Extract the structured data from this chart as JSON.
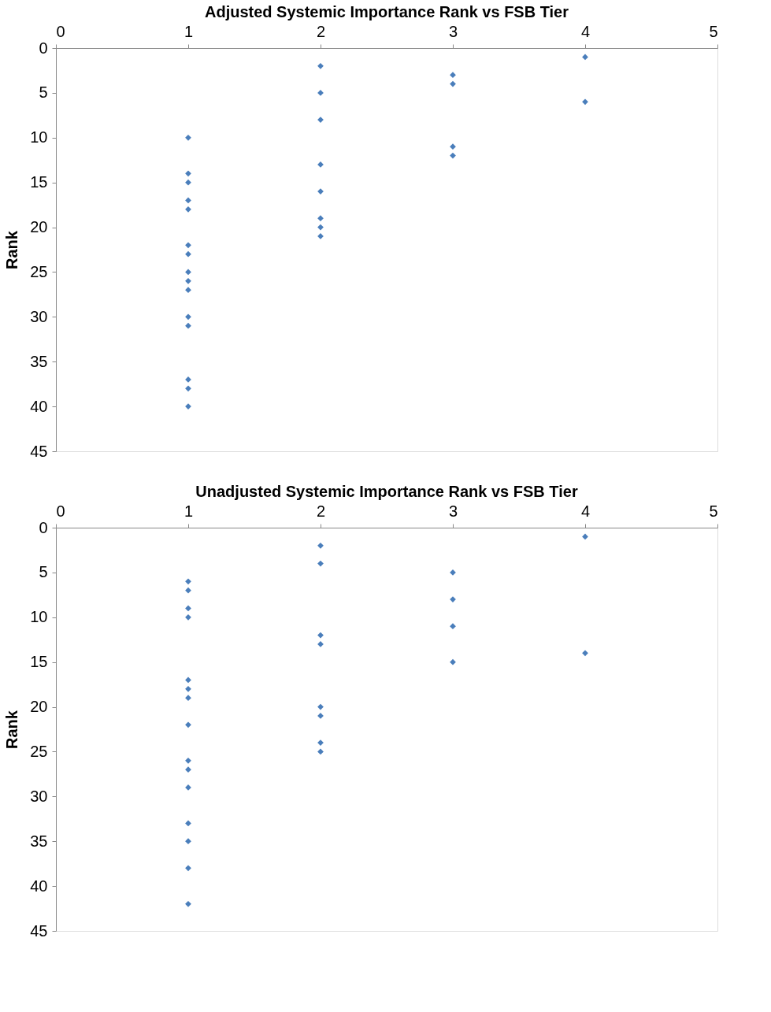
{
  "chart_data": [
    {
      "type": "scatter",
      "title": "Adjusted Systemic Importance Rank vs FSB Tier",
      "ylabel": "Rank",
      "series": [
        {
          "color": "#4a7ebb",
          "marker": "diamond",
          "x": [
            1,
            1,
            1,
            1,
            1,
            1,
            1,
            1,
            1,
            1,
            1,
            1,
            1,
            1,
            1,
            2,
            2,
            2,
            2,
            2,
            2,
            2,
            2,
            3,
            3,
            3,
            3,
            4,
            4
          ],
          "values": [
            10,
            14,
            15,
            17,
            18,
            22,
            23,
            25,
            26,
            27,
            30,
            31,
            37,
            38,
            40,
            2,
            5,
            8,
            13,
            16,
            19,
            20,
            21,
            3,
            4,
            11,
            12,
            1,
            6
          ]
        }
      ],
      "xlim": [
        0,
        5
      ],
      "xticks": [
        0,
        1,
        2,
        3,
        4,
        5
      ],
      "ylim": [
        45,
        0
      ],
      "yticks": [
        0,
        5,
        10,
        15,
        20,
        25,
        30,
        35,
        40,
        45
      ],
      "grid": false
    },
    {
      "type": "scatter",
      "title": "Unadjusted Systemic Importance Rank vs FSB Tier",
      "ylabel": "Rank",
      "series": [
        {
          "color": "#4a7ebb",
          "marker": "diamond",
          "x": [
            1,
            1,
            1,
            1,
            1,
            1,
            1,
            1,
            1,
            1,
            1,
            1,
            1,
            1,
            1,
            2,
            2,
            2,
            2,
            2,
            2,
            2,
            2,
            3,
            3,
            3,
            3,
            4,
            4
          ],
          "values": [
            6,
            7,
            9,
            10,
            17,
            18,
            19,
            22,
            26,
            27,
            29,
            33,
            35,
            38,
            42,
            2,
            4,
            12,
            13,
            20,
            21,
            24,
            25,
            5,
            8,
            11,
            15,
            1,
            14
          ]
        }
      ],
      "xlim": [
        0,
        5
      ],
      "xticks": [
        0,
        1,
        2,
        3,
        4,
        5
      ],
      "ylim": [
        45,
        0
      ],
      "yticks": [
        0,
        5,
        10,
        15,
        20,
        25,
        30,
        35,
        40,
        45
      ],
      "grid": false
    }
  ]
}
